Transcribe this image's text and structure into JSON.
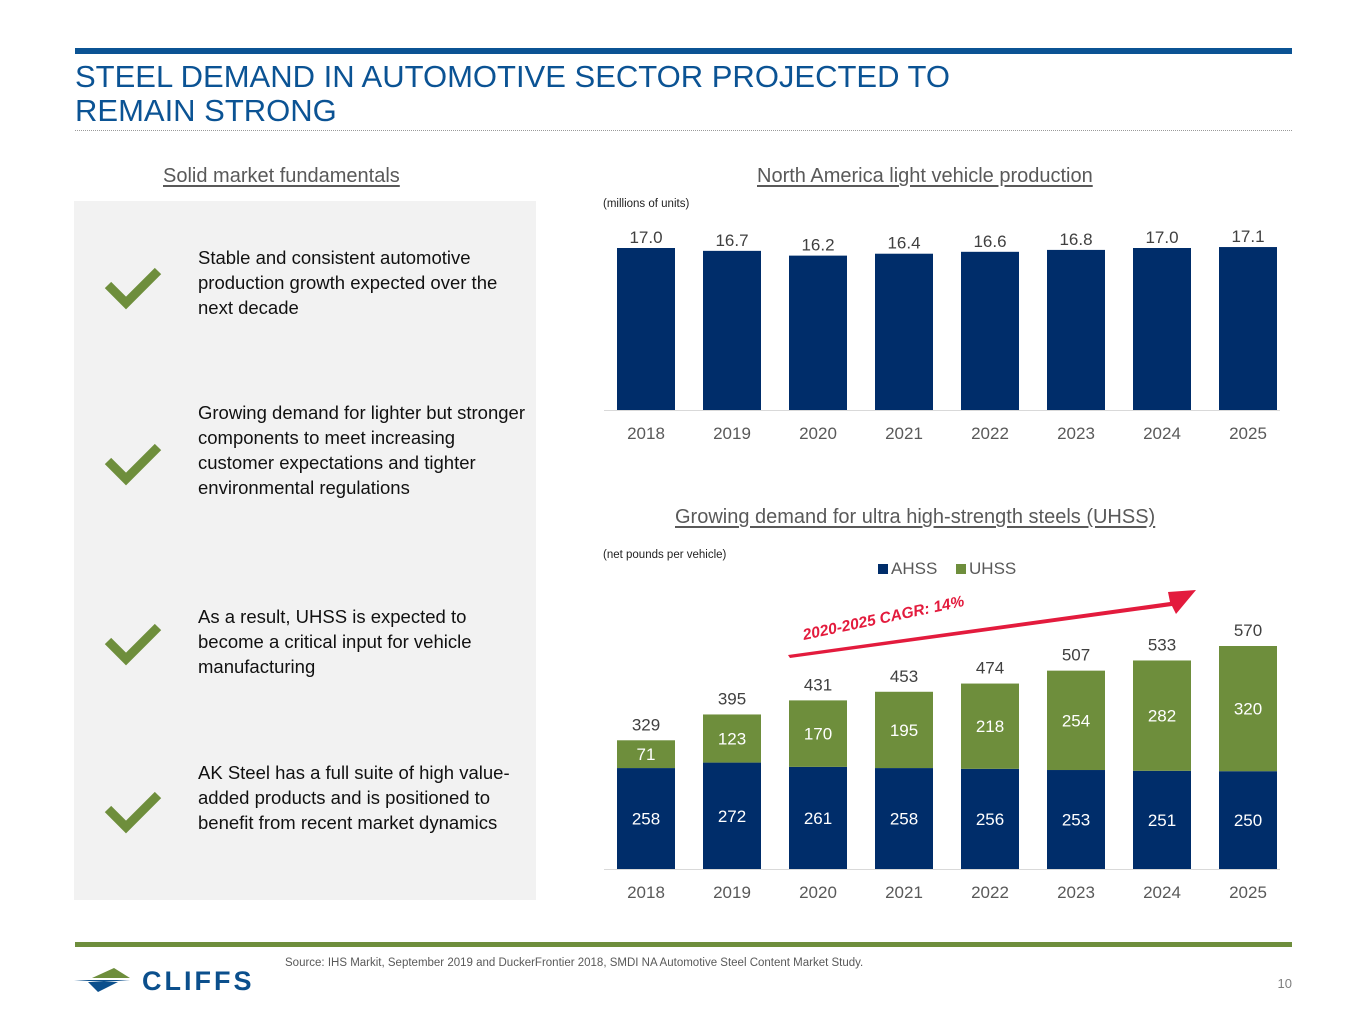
{
  "slide": {
    "title_line1": "STEEL DEMAND IN AUTOMOTIVE SECTOR PROJECTED TO",
    "title_line2": "REMAIN STRONG",
    "page_number": "10",
    "source": "Source: IHS Markit, September 2019 and DuckerFrontier 2018, SMDI NA Automotive Steel Content Market Study.",
    "logo_text": "CLIFFS",
    "colors": {
      "title_blue": "#0b5394",
      "navy": "#002d6a",
      "green": "#6e8e3c",
      "arrow_red": "#e31b3d"
    }
  },
  "fundamentals": {
    "heading": "Solid market fundamentals",
    "bullets": [
      {
        "icon": "check-icon",
        "text": "Stable and consistent automotive production growth expected over the next decade"
      },
      {
        "icon": "check-icon",
        "text": "Growing demand for lighter but stronger components to meet increasing customer expectations and tighter environmental regulations"
      },
      {
        "icon": "check-icon",
        "text": "As a result, UHSS is expected to become a critical input for vehicle manufacturing"
      },
      {
        "icon": "check-icon",
        "text": "AK Steel has a full suite of high value-added products and is positioned to benefit from recent market dynamics"
      }
    ]
  },
  "chart_data": [
    {
      "type": "bar",
      "title": "North America light vehicle production",
      "unit_note": "(millions of units)",
      "xlabel": "",
      "ylabel": "",
      "categories": [
        "2018",
        "2019",
        "2020",
        "2021",
        "2022",
        "2023",
        "2024",
        "2025"
      ],
      "values": [
        17.0,
        16.7,
        16.2,
        16.4,
        16.6,
        16.8,
        17.0,
        17.1
      ],
      "value_labels": [
        "17.0",
        "16.7",
        "16.2",
        "16.4",
        "16.6",
        "16.8",
        "17.0",
        "17.1"
      ],
      "ylim": [
        0,
        17.1
      ],
      "grid": false,
      "color": "#002d6a"
    },
    {
      "type": "bar",
      "stacked": true,
      "title": "Growing demand for ultra high-strength steels (UHSS)",
      "unit_note": "(net pounds per vehicle)",
      "xlabel": "",
      "ylabel": "",
      "categories": [
        "2018",
        "2019",
        "2020",
        "2021",
        "2022",
        "2023",
        "2024",
        "2025"
      ],
      "series": [
        {
          "name": "AHSS",
          "color": "#002d6a",
          "values": [
            258,
            272,
            261,
            258,
            256,
            253,
            251,
            250
          ]
        },
        {
          "name": "UHSS",
          "color": "#6e8e3c",
          "values": [
            71,
            123,
            170,
            195,
            218,
            254,
            282,
            320
          ]
        }
      ],
      "totals": [
        329,
        395,
        431,
        453,
        474,
        507,
        533,
        570
      ],
      "legend": [
        "AHSS",
        "UHSS"
      ],
      "legend_position": "top-center",
      "annotation": "2020-2025 CAGR: 14%",
      "ylim": [
        0,
        570
      ],
      "grid": false
    }
  ]
}
